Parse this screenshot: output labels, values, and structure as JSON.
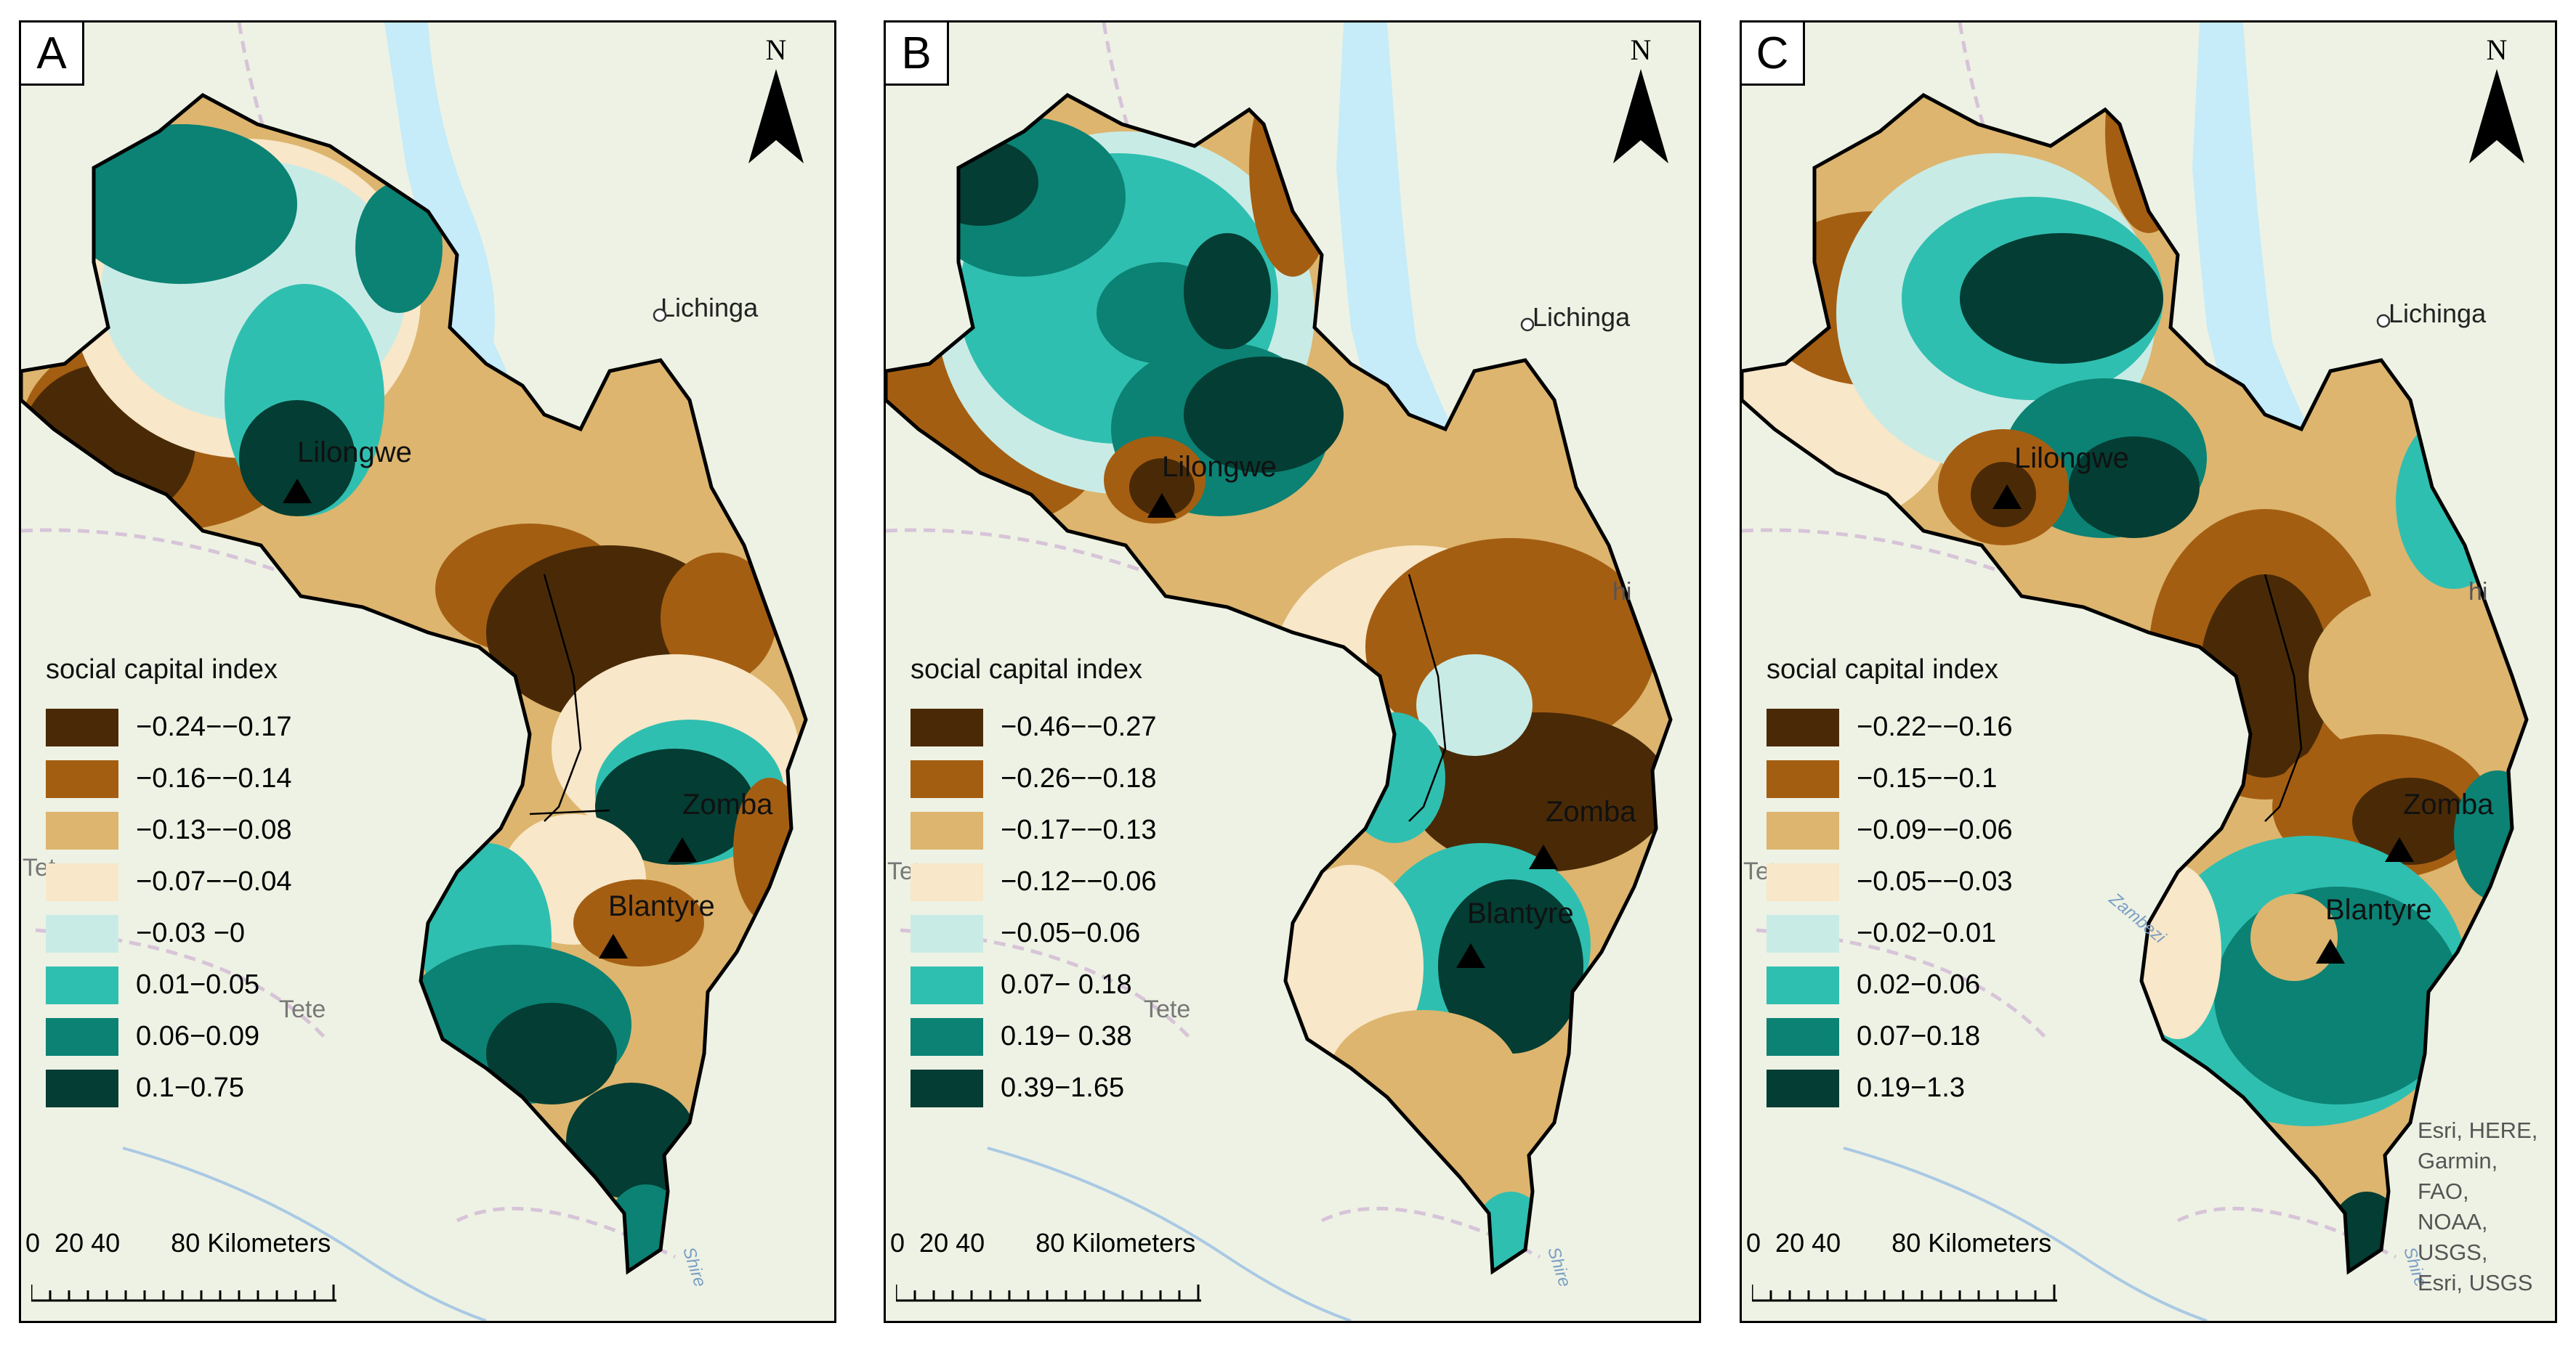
{
  "legend_title": "social capital index",
  "north_label": "N",
  "scale": {
    "ticks": [
      "0",
      "20",
      "40"
    ],
    "label": "80 Kilometers"
  },
  "background_labels": {
    "lichinga": "Lichinga",
    "tete_west": "Tet",
    "tete_south": "Tete",
    "shi": "hi",
    "zambezi": "Zambezi",
    "shire": "Shire"
  },
  "colors": {
    "ramp": [
      "#4a2a06",
      "#a45e12",
      "#ddb56e",
      "#f8e7c8",
      "#c9ebe6",
      "#2fbfb0",
      "#0b8274",
      "#033d33"
    ],
    "lake": "#c5ecf8",
    "land": "#eef2e4",
    "outline": "#000000"
  },
  "panels": [
    {
      "letter": "A",
      "legend": [
        {
          "label": "−0.24−−0.17",
          "color": "#4a2a06"
        },
        {
          "label": "−0.16−−0.14",
          "color": "#a45e12"
        },
        {
          "label": "−0.13−−0.08",
          "color": "#ddb56e"
        },
        {
          "label": "−0.07−−0.04",
          "color": "#f8e7c8"
        },
        {
          "label": "−0.03 −0",
          "color": "#c9ebe6"
        },
        {
          "label": "0.01−0.05",
          "color": "#2fbfb0"
        },
        {
          "label": "0.06−0.09",
          "color": "#0b8274"
        },
        {
          "label": "0.1−0.75",
          "color": "#033d33"
        }
      ],
      "cities": {
        "lilongwe": "Lilongwe",
        "zomba": "Zomba",
        "blantyre": "Blantyre"
      }
    },
    {
      "letter": "B",
      "legend": [
        {
          "label": "−0.46−−0.27",
          "color": "#4a2a06"
        },
        {
          "label": "−0.26−−0.18",
          "color": "#a45e12"
        },
        {
          "label": "−0.17−−0.13",
          "color": "#ddb56e"
        },
        {
          "label": "−0.12−−0.06",
          "color": "#f8e7c8"
        },
        {
          "label": "−0.05−0.06",
          "color": "#c9ebe6"
        },
        {
          "label": "0.07− 0.18",
          "color": "#2fbfb0"
        },
        {
          "label": "0.19− 0.38",
          "color": "#0b8274"
        },
        {
          "label": "0.39−1.65",
          "color": "#033d33"
        }
      ],
      "cities": {
        "lilongwe": "Lilongwe",
        "zomba": "Zomba",
        "blantyre": "Blantyre"
      }
    },
    {
      "letter": "C",
      "legend": [
        {
          "label": "−0.22−−0.16",
          "color": "#4a2a06"
        },
        {
          "label": "−0.15−−0.1",
          "color": "#a45e12"
        },
        {
          "label": "−0.09−−0.06",
          "color": "#ddb56e"
        },
        {
          "label": "−0.05−−0.03",
          "color": "#f8e7c8"
        },
        {
          "label": "−0.02−0.01",
          "color": "#c9ebe6"
        },
        {
          "label": "0.02−0.06",
          "color": "#2fbfb0"
        },
        {
          "label": "0.07−0.18",
          "color": "#0b8274"
        },
        {
          "label": "0.19−1.3",
          "color": "#033d33"
        }
      ],
      "cities": {
        "lilongwe": "Lilongwe",
        "zomba": "Zomba",
        "blantyre": "Blantyre"
      }
    }
  ],
  "attribution": [
    "Esri, HERE,",
    "Garmin,",
    "FAO,",
    "NOAA,",
    "USGS,",
    "Esri, USGS"
  ]
}
